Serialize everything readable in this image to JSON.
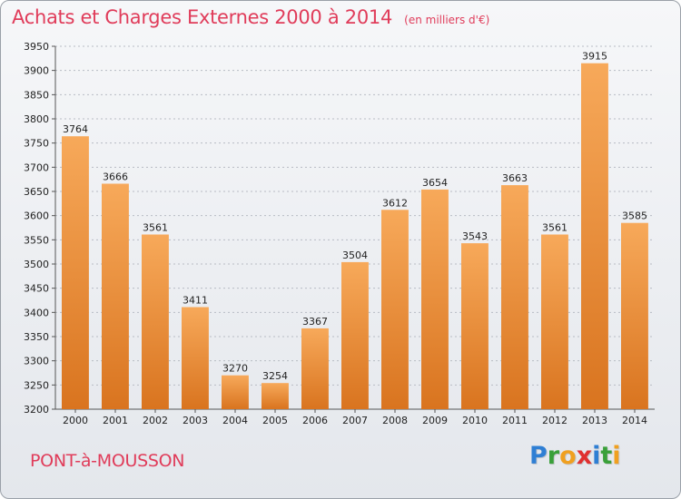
{
  "header": {
    "title": "Achats et Charges Externes 2000 à 2014",
    "subtitle": "(en milliers d'€)"
  },
  "footer": {
    "city": "PONT-à-MOUSSON",
    "logo": [
      "P",
      "r",
      "o",
      "x",
      "i",
      "t",
      "i"
    ]
  },
  "colors": {
    "bar_top": "#f7a95a",
    "bar_bottom": "#d9741f",
    "text_accent": "#e03c5a"
  },
  "chart_data": {
    "type": "bar",
    "categories": [
      "2000",
      "2001",
      "2002",
      "2003",
      "2004",
      "2005",
      "2006",
      "2007",
      "2008",
      "2009",
      "2010",
      "2011",
      "2012",
      "2013",
      "2014"
    ],
    "values": [
      3764,
      3666,
      3561,
      3411,
      3270,
      3254,
      3367,
      3504,
      3612,
      3654,
      3543,
      3663,
      3561,
      3915,
      3585
    ],
    "title": "Achats et Charges Externes 2000 à 2014",
    "subtitle": "(en milliers d'€)",
    "ylim": [
      3200,
      3950
    ],
    "yticks": [
      3200,
      3250,
      3300,
      3350,
      3400,
      3450,
      3500,
      3550,
      3600,
      3650,
      3700,
      3750,
      3800,
      3850,
      3900,
      3950
    ],
    "grid": true,
    "legend": "none"
  }
}
